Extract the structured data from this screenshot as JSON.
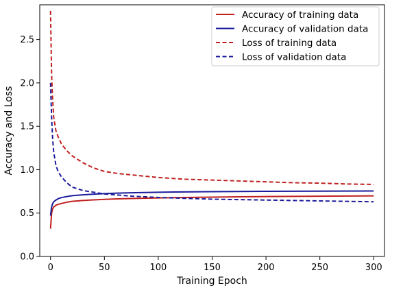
{
  "chart_data": {
    "type": "line",
    "xlabel": "Training Epoch",
    "ylabel": "Accuracy and Loss",
    "xlim": [
      -10,
      310
    ],
    "ylim": [
      0.0,
      2.9
    ],
    "xticks": [
      0,
      50,
      100,
      150,
      200,
      250,
      300
    ],
    "yticks": [
      0.0,
      0.5,
      1.0,
      1.5,
      2.0,
      2.5
    ],
    "xtick_labels": [
      "0",
      "50",
      "100",
      "150",
      "200",
      "250",
      "300"
    ],
    "ytick_labels": [
      "0.0",
      "0.5",
      "1.0",
      "1.5",
      "2.0",
      "2.5"
    ],
    "grid": false,
    "legend_position": "top-right",
    "series": [
      {
        "name": "Accuracy of training data",
        "color": "#c0201e",
        "style": "solid",
        "x": [
          0,
          1,
          2,
          3,
          5,
          7,
          10,
          15,
          20,
          30,
          40,
          50,
          60,
          75,
          100,
          125,
          150,
          175,
          200,
          225,
          250,
          275,
          300
        ],
        "y": [
          0.32,
          0.5,
          0.55,
          0.57,
          0.59,
          0.6,
          0.61,
          0.625,
          0.635,
          0.645,
          0.652,
          0.658,
          0.663,
          0.668,
          0.675,
          0.68,
          0.684,
          0.687,
          0.69,
          0.692,
          0.694,
          0.696,
          0.698
        ]
      },
      {
        "name": "Accuracy of validation data",
        "color": "#1a1a9c",
        "style": "solid",
        "x": [
          0,
          1,
          2,
          3,
          5,
          7,
          10,
          15,
          20,
          30,
          40,
          50,
          60,
          75,
          100,
          125,
          150,
          175,
          200,
          225,
          250,
          275,
          300
        ],
        "y": [
          0.47,
          0.57,
          0.61,
          0.63,
          0.65,
          0.665,
          0.678,
          0.69,
          0.7,
          0.71,
          0.718,
          0.724,
          0.729,
          0.734,
          0.74,
          0.744,
          0.747,
          0.749,
          0.751,
          0.752,
          0.753,
          0.754,
          0.755
        ]
      },
      {
        "name": "Loss of training data",
        "color": "#c0201e",
        "style": "dashed",
        "x": [
          0,
          1,
          2,
          3,
          5,
          7,
          10,
          15,
          20,
          30,
          40,
          50,
          60,
          75,
          100,
          125,
          150,
          175,
          200,
          225,
          250,
          275,
          300
        ],
        "y": [
          2.83,
          2.1,
          1.8,
          1.6,
          1.45,
          1.38,
          1.3,
          1.22,
          1.16,
          1.08,
          1.02,
          0.98,
          0.96,
          0.94,
          0.91,
          0.89,
          0.88,
          0.87,
          0.86,
          0.85,
          0.845,
          0.835,
          0.83
        ]
      },
      {
        "name": "Loss of validation data",
        "color": "#1a1a9c",
        "style": "dashed",
        "x": [
          0,
          1,
          2,
          3,
          5,
          7,
          10,
          15,
          20,
          30,
          40,
          50,
          60,
          75,
          100,
          125,
          150,
          175,
          200,
          225,
          250,
          275,
          300
        ],
        "y": [
          2.0,
          1.6,
          1.35,
          1.2,
          1.05,
          0.98,
          0.92,
          0.85,
          0.8,
          0.76,
          0.74,
          0.72,
          0.71,
          0.695,
          0.68,
          0.67,
          0.66,
          0.655,
          0.65,
          0.645,
          0.64,
          0.635,
          0.63
        ]
      }
    ]
  }
}
